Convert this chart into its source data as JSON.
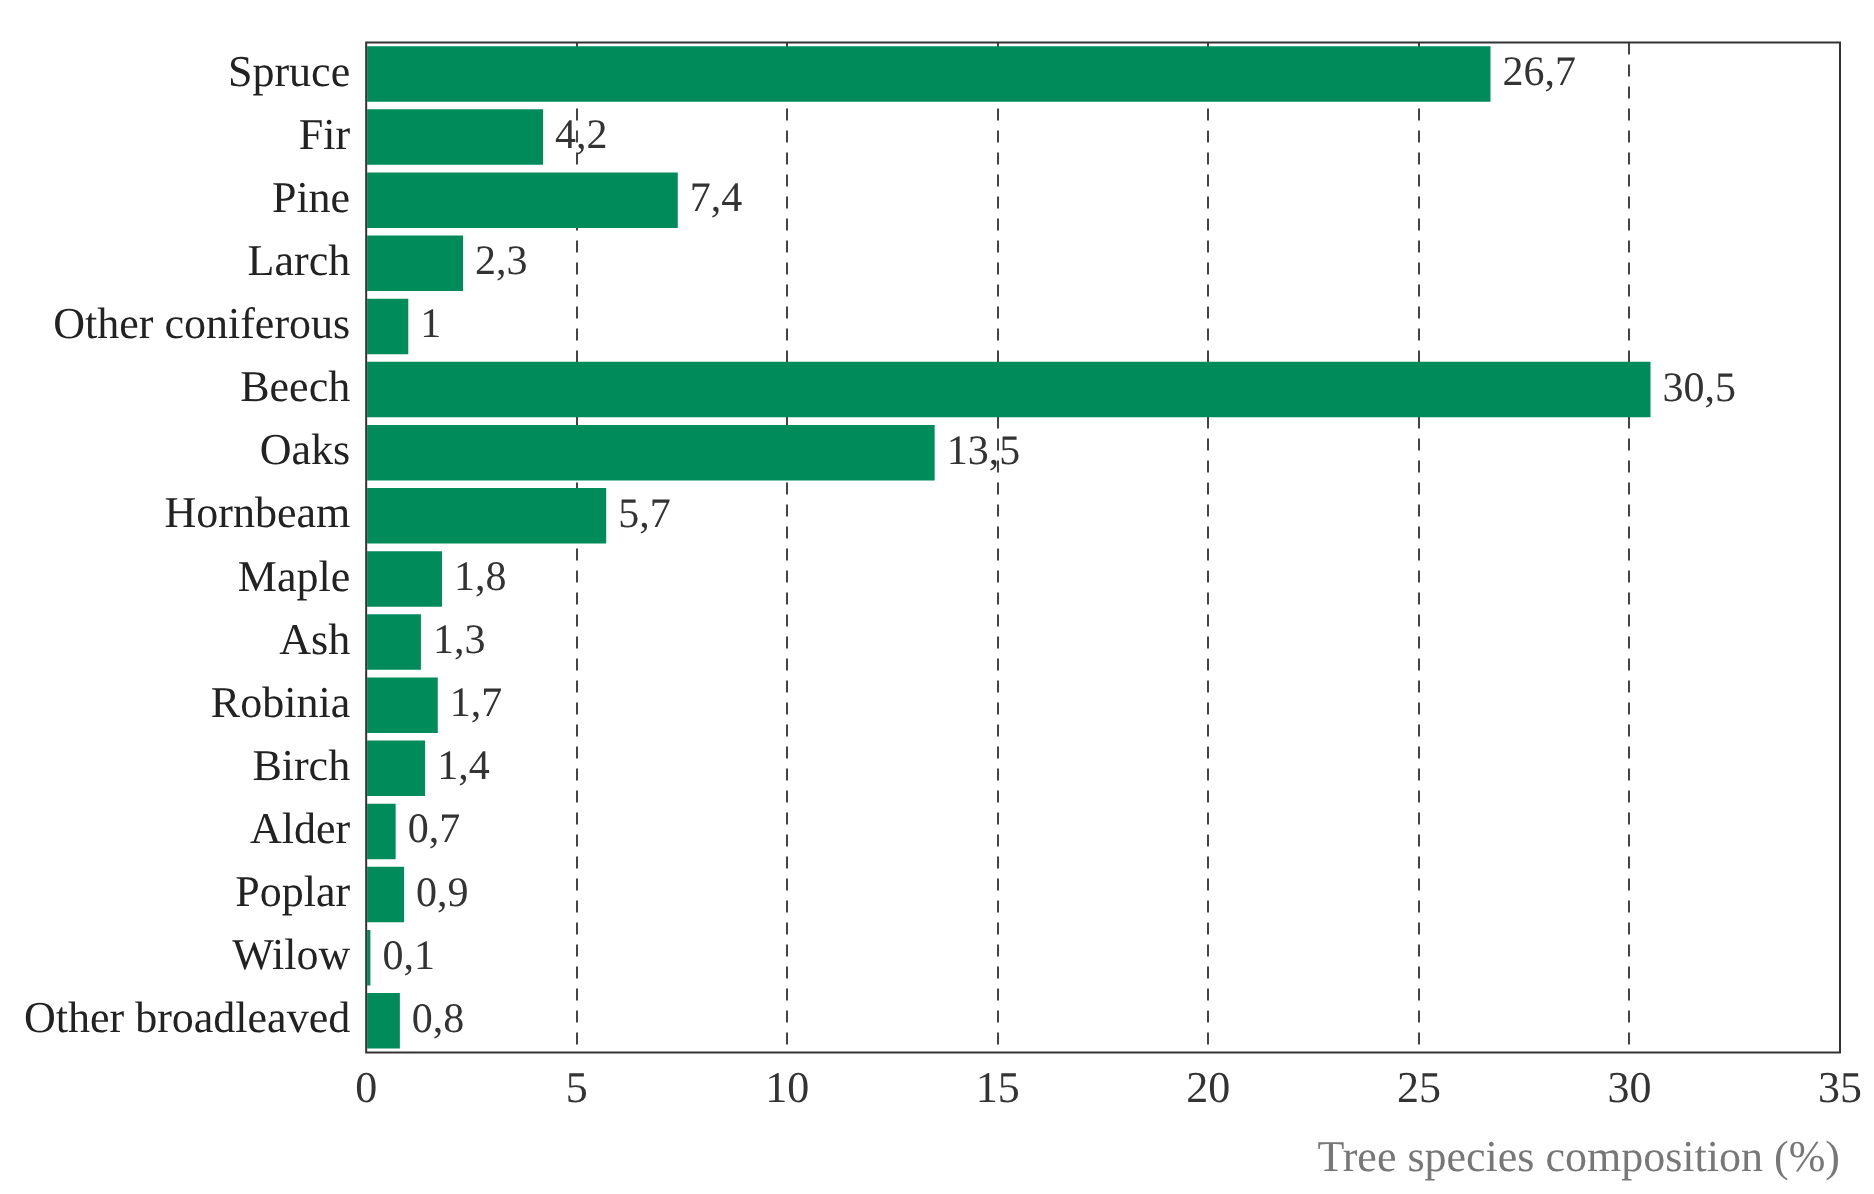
{
  "chart_data": {
    "type": "bar",
    "orientation": "horizontal",
    "xlabel": "Tree species composition (%)",
    "categories": [
      "Spruce",
      "Fir",
      "Pine",
      "Larch",
      "Other coniferous",
      "Beech",
      "Oaks",
      "Hornbeam",
      "Maple",
      "Ash",
      "Robinia",
      "Birch",
      "Alder",
      "Poplar",
      "Wilow",
      "Other broadleaved"
    ],
    "values": [
      26.7,
      4.2,
      7.4,
      2.3,
      1,
      30.5,
      13.5,
      5.7,
      1.8,
      1.3,
      1.7,
      1.4,
      0.7,
      0.9,
      0.1,
      0.8
    ],
    "value_labels": [
      "26,7",
      "4,2",
      "7,4",
      "2,3",
      "1",
      "30,5",
      "13,5",
      "5,7",
      "1,8",
      "1,3",
      "1,7",
      "1,4",
      "0,7",
      "0,9",
      "0,1",
      "0,8"
    ],
    "color": "#008c5a",
    "xlim": [
      0,
      35
    ],
    "xticks": [
      0,
      5,
      10,
      15,
      20,
      25,
      30,
      35
    ],
    "grid": "x",
    "legend": false
  }
}
